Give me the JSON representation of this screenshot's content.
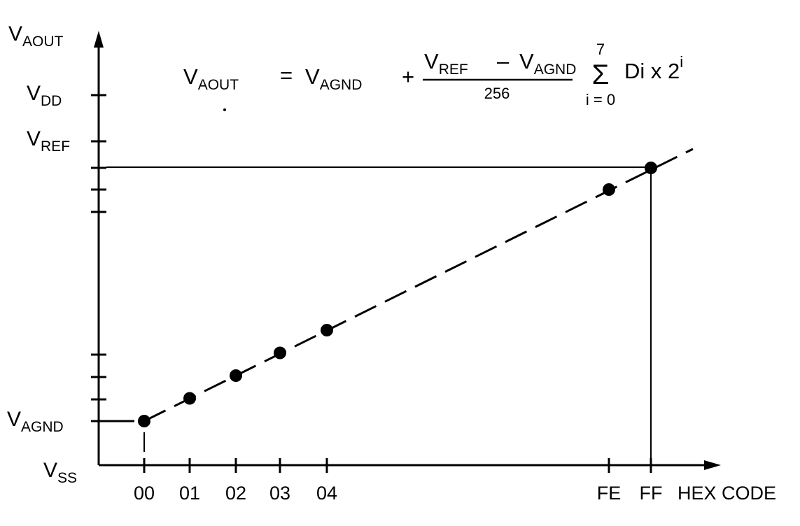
{
  "y_axis": {
    "title_main": "V",
    "title_sub": "AOUT",
    "levels": [
      {
        "main": "V",
        "sub": "DD"
      },
      {
        "main": "V",
        "sub": "REF"
      },
      {
        "main": "V",
        "sub": "AGND"
      },
      {
        "main": "V",
        "sub": "SS"
      }
    ]
  },
  "x_axis": {
    "title": "HEX CODE",
    "ticks": [
      "00",
      "01",
      "02",
      "03",
      "04",
      "FE",
      "FF"
    ]
  },
  "formula": {
    "lhs_main": "V",
    "lhs_sub": "AOUT",
    "equals": "=",
    "term1_main": "V",
    "term1_sub": "AGND",
    "plus": "+",
    "num_a_main": "V",
    "num_a_sub": "REF",
    "minus": "–",
    "num_b_main": "V",
    "num_b_sub": "AGND",
    "denominator": "256",
    "sum_upper": "7",
    "sum_symbol": "Σ",
    "sum_lower": "i = 0",
    "summand": "Di x 2",
    "exponent": "i"
  },
  "points": [
    {
      "code": "00",
      "value": 0
    },
    {
      "code": "01",
      "value": 1
    },
    {
      "code": "02",
      "value": 2
    },
    {
      "code": "03",
      "value": 3
    },
    {
      "code": "04",
      "value": 4
    },
    {
      "code": "FE",
      "value": 254
    },
    {
      "code": "FF",
      "value": 255
    }
  ]
}
